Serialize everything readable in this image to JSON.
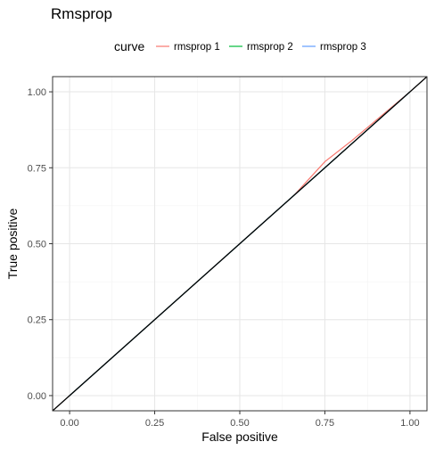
{
  "chart_data": {
    "type": "line",
    "title": "Rmsprop",
    "xlabel": "False positive",
    "ylabel": "True positive",
    "xlim": [
      -0.05,
      1.05
    ],
    "ylim": [
      -0.05,
      1.05
    ],
    "xticks": [
      "0.00",
      "0.25",
      "0.50",
      "0.75",
      "1.00"
    ],
    "yticks": [
      "0.00",
      "0.25",
      "0.50",
      "0.75",
      "1.00"
    ],
    "grid": true,
    "legend": {
      "title": "curve",
      "position": "top",
      "entries": [
        "rmsprop 1",
        "rmsprop 2",
        "rmsprop 3"
      ]
    },
    "series": [
      {
        "name": "rmsprop 1",
        "color": "#F8766D",
        "x": [
          0,
          0.66,
          0.75,
          0.83,
          1
        ],
        "y": [
          0,
          0.66,
          0.77,
          0.84,
          1
        ]
      },
      {
        "name": "rmsprop 2",
        "color": "#00BA38",
        "x": [
          0,
          1
        ],
        "y": [
          0,
          1
        ]
      },
      {
        "name": "rmsprop 3",
        "color": "#619CFF",
        "x": [
          0,
          1
        ],
        "y": [
          0,
          1
        ]
      }
    ],
    "reference_line": {
      "color": "#000000",
      "x": [
        -0.05,
        1.05
      ],
      "y": [
        -0.05,
        1.05
      ]
    }
  }
}
